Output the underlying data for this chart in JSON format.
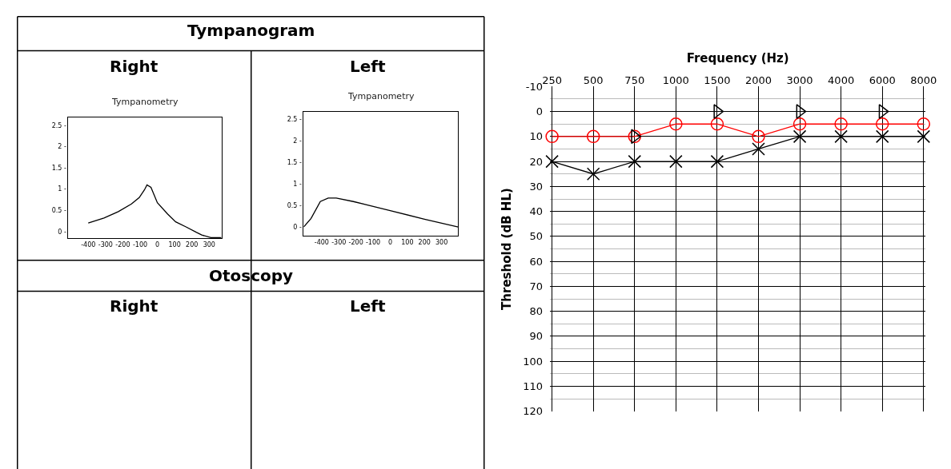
{
  "chart_data": [
    {
      "type": "other",
      "annotations": [
        "Tympanogram",
        "Right",
        "Left",
        "Otoscopy",
        "Right",
        "Left"
      ]
    },
    {
      "type": "line",
      "title": "Tympanometry",
      "x": [
        -400,
        -309,
        -226,
        -150,
        -105,
        -75,
        -60,
        -37,
        0,
        60,
        106,
        166,
        227,
        257,
        310,
        370
      ],
      "values": [
        0.2,
        0.32,
        0.47,
        0.65,
        0.8,
        0.98,
        1.1,
        1.04,
        0.68,
        0.41,
        0.23,
        0.11,
        -0.02,
        -0.08,
        -0.14,
        -0.14
      ],
      "color": "#000000",
      "xlim": [
        -515,
        375
      ],
      "ylim": [
        -0.16,
        2.68
      ],
      "xticks": [
        -400,
        -300,
        -200,
        -100,
        0,
        100,
        200,
        300
      ],
      "yticks": [
        {
          "value": 0,
          "label": "0 -"
        },
        {
          "value": 0.5,
          "label": "0.5 -"
        },
        {
          "value": 1,
          "label": "1 -"
        },
        {
          "value": 1.5,
          "label": "1.5 -"
        },
        {
          "value": 2,
          "label": "2 -"
        },
        {
          "value": 2.5,
          "label": "2.5 -"
        }
      ],
      "grid": false
    },
    {
      "type": "line",
      "title": "Tympanometry",
      "x": [
        -505,
        -462,
        -408,
        -362,
        -315,
        -215,
        0,
        200,
        397
      ],
      "values": [
        0.0,
        0.2,
        0.59,
        0.67,
        0.67,
        0.59,
        0.38,
        0.18,
        0.0
      ],
      "color": "#000000",
      "xlim": [
        -505,
        397
      ],
      "ylim": [
        -0.21,
        2.66
      ],
      "xticks": [
        -400,
        -300,
        -200,
        -100,
        0,
        100,
        200,
        300
      ],
      "yticks": [
        {
          "value": 0,
          "label": "0 -"
        },
        {
          "value": 0.5,
          "label": "0.5 -"
        },
        {
          "value": 1,
          "label": "1 -"
        },
        {
          "value": 1.5,
          "label": "1.5 -"
        },
        {
          "value": 2,
          "label": "2 -"
        },
        {
          "value": 2.5,
          "label": "2.5 -"
        }
      ],
      "grid": false
    },
    {
      "type": "line",
      "xlabel": "Frequency (Hz)",
      "ylabel": "Threshold (dB HL)",
      "categories": [
        "250",
        "500",
        "750",
        "1000",
        "1500",
        "2000",
        "3000",
        "4000",
        "6000",
        "8000"
      ],
      "ylim": [
        120,
        -10
      ],
      "yticks": [
        -10,
        0,
        10,
        20,
        30,
        40,
        50,
        60,
        70,
        80,
        90,
        100,
        110,
        120
      ],
      "grid": true,
      "series": [
        {
          "color": "#ff0000",
          "marker": "circle",
          "values": [
            10,
            10,
            10,
            5,
            5,
            10,
            5,
            5,
            5,
            5
          ]
        },
        {
          "color": "#000000",
          "marker": "cross",
          "values": [
            20,
            25,
            20,
            20,
            20,
            15,
            10,
            10,
            10,
            10
          ]
        },
        {
          "type": "scatter",
          "color": "#000000",
          "marker": "triangle",
          "values": [
            null,
            null,
            10,
            null,
            0,
            null,
            0,
            null,
            0,
            null
          ]
        }
      ]
    }
  ]
}
